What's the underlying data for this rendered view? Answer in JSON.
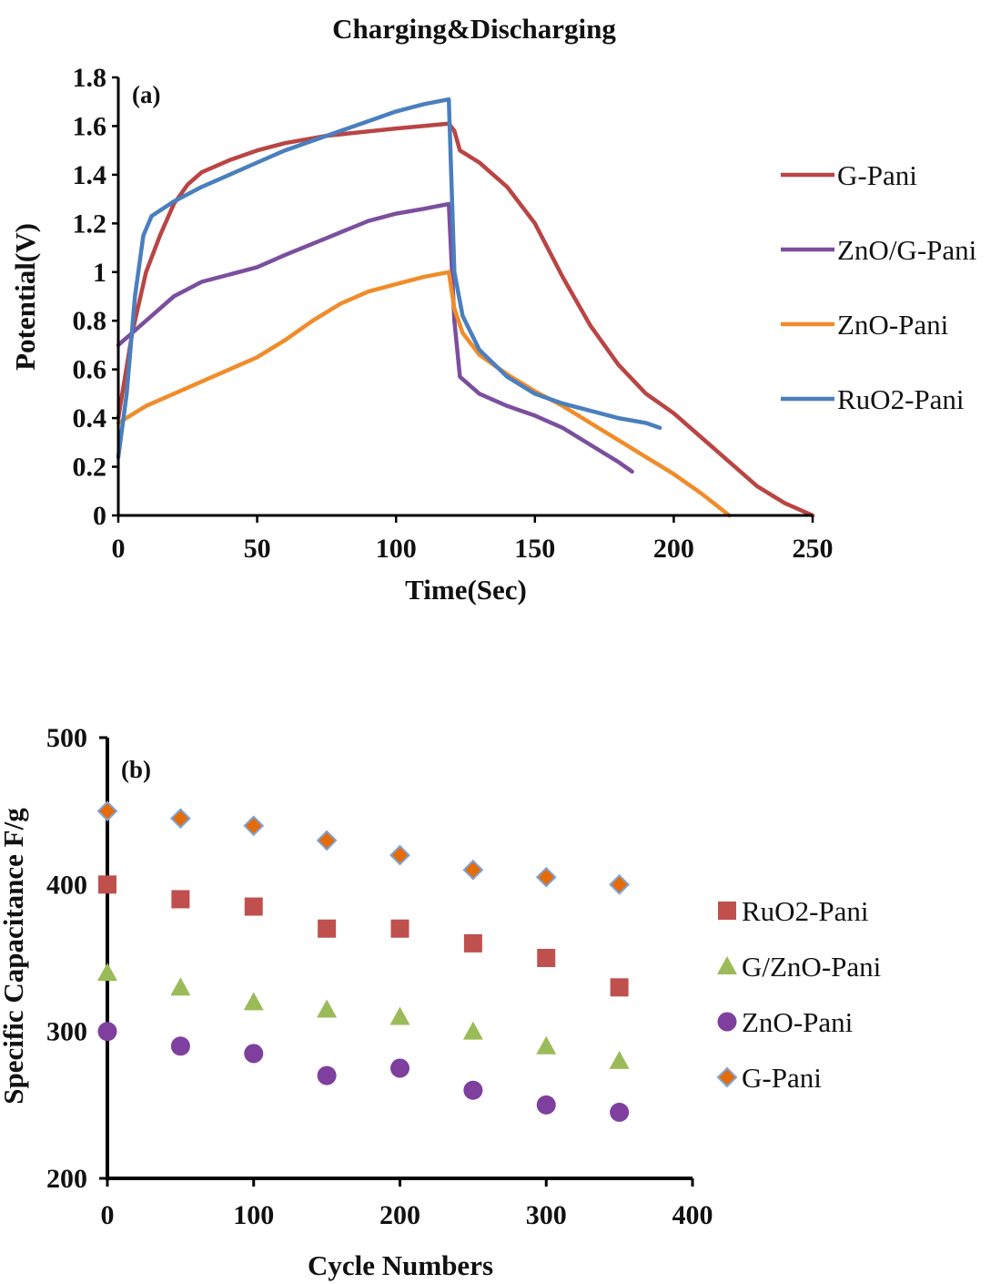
{
  "chart_data": [
    {
      "type": "line",
      "title": "Charging&Discharging",
      "panel_label": "(a)",
      "xlabel": "Time(Sec)",
      "ylabel": "Potential(V)",
      "xlim": [
        0,
        250
      ],
      "ylim": [
        0,
        1.8
      ],
      "xticks": [
        "0",
        "50",
        "100",
        "150",
        "200",
        "250"
      ],
      "yticks": [
        "0",
        "0.2",
        "0.4",
        "0.6",
        "0.8",
        "1",
        "1.2",
        "1.4",
        "1.6",
        "1.8"
      ],
      "grid": false,
      "legend_position": "right",
      "series": [
        {
          "name": "G-Pani",
          "color": "#b94544",
          "points": [
            [
              0,
              0.4
            ],
            [
              5,
              0.75
            ],
            [
              10,
              1.0
            ],
            [
              15,
              1.15
            ],
            [
              20,
              1.28
            ],
            [
              25,
              1.36
            ],
            [
              30,
              1.41
            ],
            [
              40,
              1.46
            ],
            [
              50,
              1.5
            ],
            [
              60,
              1.53
            ],
            [
              75,
              1.56
            ],
            [
              100,
              1.59
            ],
            [
              119,
              1.61
            ],
            [
              121,
              1.58
            ],
            [
              123,
              1.5
            ],
            [
              130,
              1.45
            ],
            [
              140,
              1.35
            ],
            [
              150,
              1.2
            ],
            [
              160,
              0.98
            ],
            [
              170,
              0.78
            ],
            [
              180,
              0.62
            ],
            [
              190,
              0.5
            ],
            [
              200,
              0.42
            ],
            [
              210,
              0.32
            ],
            [
              220,
              0.22
            ],
            [
              230,
              0.12
            ],
            [
              240,
              0.05
            ],
            [
              250,
              0.0
            ]
          ]
        },
        {
          "name": "ZnO/G-Pani",
          "color": "#7b4f9e",
          "points": [
            [
              0,
              0.7
            ],
            [
              10,
              0.8
            ],
            [
              20,
              0.9
            ],
            [
              30,
              0.96
            ],
            [
              40,
              0.99
            ],
            [
              50,
              1.02
            ],
            [
              60,
              1.07
            ],
            [
              75,
              1.14
            ],
            [
              90,
              1.21
            ],
            [
              100,
              1.24
            ],
            [
              110,
              1.26
            ],
            [
              119,
              1.28
            ],
            [
              121,
              0.8
            ],
            [
              123,
              0.57
            ],
            [
              130,
              0.5
            ],
            [
              140,
              0.45
            ],
            [
              150,
              0.41
            ],
            [
              160,
              0.36
            ],
            [
              170,
              0.29
            ],
            [
              180,
              0.22
            ],
            [
              185,
              0.18
            ]
          ]
        },
        {
          "name": "ZnO-Pani",
          "color": "#f08c2a",
          "points": [
            [
              0,
              0.38
            ],
            [
              10,
              0.45
            ],
            [
              20,
              0.5
            ],
            [
              30,
              0.55
            ],
            [
              40,
              0.6
            ],
            [
              50,
              0.65
            ],
            [
              60,
              0.72
            ],
            [
              70,
              0.8
            ],
            [
              80,
              0.87
            ],
            [
              90,
              0.92
            ],
            [
              100,
              0.95
            ],
            [
              110,
              0.98
            ],
            [
              119,
              1.0
            ],
            [
              121,
              0.85
            ],
            [
              124,
              0.75
            ],
            [
              130,
              0.66
            ],
            [
              140,
              0.58
            ],
            [
              150,
              0.51
            ],
            [
              160,
              0.45
            ],
            [
              170,
              0.38
            ],
            [
              180,
              0.31
            ],
            [
              190,
              0.24
            ],
            [
              200,
              0.17
            ],
            [
              210,
              0.09
            ],
            [
              220,
              0.0
            ]
          ]
        },
        {
          "name": "RuO2-Pani",
          "color": "#4a7fbe",
          "points": [
            [
              0,
              0.24
            ],
            [
              3,
              0.5
            ],
            [
              6,
              0.9
            ],
            [
              9,
              1.15
            ],
            [
              12,
              1.23
            ],
            [
              20,
              1.29
            ],
            [
              30,
              1.35
            ],
            [
              40,
              1.4
            ],
            [
              50,
              1.45
            ],
            [
              60,
              1.5
            ],
            [
              70,
              1.54
            ],
            [
              80,
              1.58
            ],
            [
              90,
              1.62
            ],
            [
              100,
              1.66
            ],
            [
              110,
              1.69
            ],
            [
              119,
              1.71
            ],
            [
              121,
              1.0
            ],
            [
              124,
              0.82
            ],
            [
              130,
              0.68
            ],
            [
              140,
              0.57
            ],
            [
              150,
              0.5
            ],
            [
              160,
              0.46
            ],
            [
              170,
              0.43
            ],
            [
              180,
              0.4
            ],
            [
              190,
              0.38
            ],
            [
              195,
              0.36
            ]
          ]
        }
      ]
    },
    {
      "type": "scatter",
      "panel_label": "(b)",
      "xlabel": "Cycle Numbers",
      "ylabel": "Specific Capacitance F/g",
      "xlim": [
        0,
        400
      ],
      "ylim": [
        200,
        500
      ],
      "xticks": [
        "0",
        "100",
        "200",
        "300",
        "400"
      ],
      "yticks": [
        "200",
        "300",
        "400",
        "500"
      ],
      "grid": false,
      "legend_position": "right",
      "x": [
        0,
        50,
        100,
        150,
        200,
        250,
        300,
        350
      ],
      "series": [
        {
          "name": "RuO2-Pani",
          "marker": "square",
          "color": "#c0504d",
          "values": [
            400,
            390,
            385,
            370,
            370,
            360,
            350,
            330
          ]
        },
        {
          "name": "G/ZnO-Pani",
          "marker": "triangle",
          "color": "#9bbb59",
          "values": [
            340,
            330,
            320,
            315,
            310,
            300,
            290,
            280
          ]
        },
        {
          "name": "ZnO-Pani",
          "marker": "circle",
          "color": "#7e3f9e",
          "values": [
            300,
            290,
            285,
            270,
            275,
            260,
            250,
            245
          ]
        },
        {
          "name": "G-Pani",
          "marker": "diamond",
          "color": "#e46c0a",
          "edge_color": "#7ea3d6",
          "values": [
            450,
            445,
            440,
            430,
            420,
            410,
            405,
            400
          ]
        }
      ]
    }
  ]
}
